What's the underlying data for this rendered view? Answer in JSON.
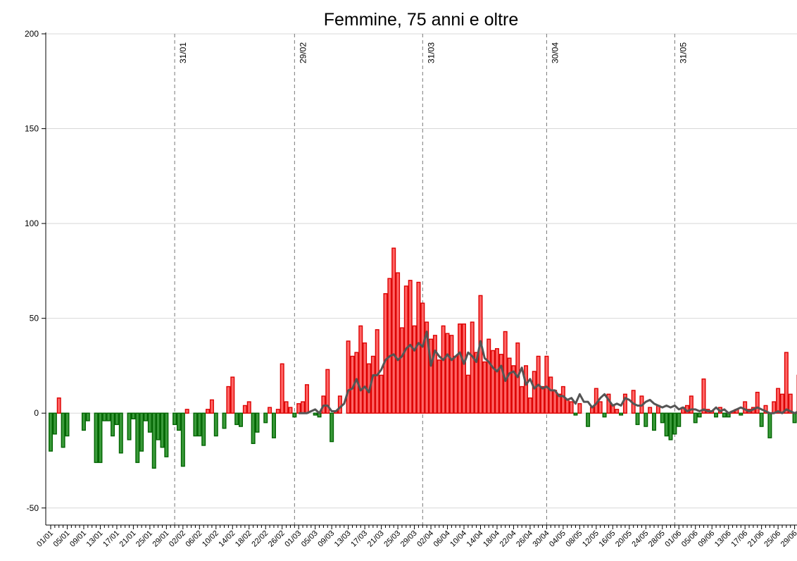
{
  "chart_data": {
    "type": "bar",
    "title": "Femmine, 75 anni e oltre",
    "categories": [
      "01/01",
      null,
      null,
      null,
      "05/01",
      null,
      null,
      null,
      "09/01",
      null,
      null,
      null,
      "13/01",
      null,
      null,
      null,
      "17/01",
      null,
      null,
      null,
      "21/01",
      null,
      null,
      null,
      "25/01",
      null,
      null,
      null,
      "29/01",
      null,
      null,
      null,
      "02/02",
      null,
      null,
      null,
      "06/02",
      null,
      null,
      null,
      "10/02",
      null,
      null,
      null,
      "14/02",
      null,
      null,
      null,
      "18/02",
      null,
      null,
      null,
      "22/02",
      null,
      null,
      null,
      "26/02",
      null,
      null,
      null,
      "01/03",
      null,
      null,
      null,
      "05/03",
      null,
      null,
      null,
      "09/03",
      null,
      null,
      null,
      "13/03",
      null,
      null,
      null,
      "17/03",
      null,
      null,
      null,
      "21/03",
      null,
      null,
      null,
      "25/03",
      null,
      null,
      null,
      "29/03",
      null,
      null,
      null,
      "02/04",
      null,
      null,
      null,
      "06/04",
      null,
      null,
      null,
      "10/04",
      null,
      null,
      null,
      "14/04",
      null,
      null,
      null,
      "18/04",
      null,
      null,
      null,
      "22/04",
      null,
      null,
      null,
      "26/04",
      null,
      null,
      null,
      "30/04",
      null,
      null,
      null,
      "04/05",
      null,
      null,
      null,
      "08/05",
      null,
      null,
      null,
      "12/05",
      null,
      null,
      null,
      "16/05",
      null,
      null,
      null,
      "20/05",
      null,
      null,
      null,
      "24/05",
      null,
      null,
      null,
      "28/05",
      null,
      null,
      null,
      "01/06",
      null,
      null,
      null,
      "05/06",
      null,
      null,
      null,
      "09/06",
      null,
      null,
      null,
      "13/06",
      null,
      null,
      null,
      "17/06",
      null,
      null,
      null,
      "21/06",
      null,
      null,
      null,
      "25/06",
      null,
      null,
      null,
      "29/06",
      null
    ],
    "series": [
      {
        "type": "bar",
        "positive_color": "#ff6666",
        "positive_stroke": "#dd0000",
        "negative_color": "#3a9a3a",
        "negative_stroke": "#006400",
        "values": [
          -20,
          -11,
          8,
          -18,
          -12,
          0,
          0,
          0,
          -9,
          -4,
          0,
          -26,
          -26,
          -4,
          -4,
          -12,
          -6,
          -21,
          0,
          -14,
          -3,
          -26,
          -20,
          -4,
          -10,
          -29,
          -14,
          -18,
          -23,
          0,
          -6,
          -9,
          -28,
          2,
          0,
          -12,
          -12,
          -17,
          2,
          7,
          -12,
          0,
          -8,
          14,
          19,
          -6,
          -7,
          4,
          6,
          -16,
          -10,
          0,
          -5,
          3,
          -13,
          2,
          26,
          6,
          3,
          -2,
          5,
          6,
          15,
          0,
          -1,
          -2,
          9,
          23,
          -15,
          1,
          9,
          0,
          38,
          30,
          32,
          46,
          37,
          26,
          30,
          44,
          20,
          63,
          71,
          87,
          74,
          45,
          67,
          70,
          46,
          69,
          58,
          48,
          39,
          41,
          28,
          46,
          42,
          41,
          30,
          47,
          47,
          20,
          48,
          32,
          62,
          27,
          39,
          33,
          34,
          31,
          43,
          29,
          25,
          37,
          14,
          25,
          8,
          22,
          30,
          14,
          30,
          19,
          12,
          10,
          14,
          7,
          6,
          -1,
          5,
          0,
          -7,
          3,
          13,
          6,
          -2,
          10,
          4,
          2,
          -1,
          10,
          0,
          12,
          -6,
          9,
          -7,
          3,
          -9,
          4,
          -5,
          -12,
          -14,
          -11,
          -7,
          3,
          4,
          9,
          -5,
          -2,
          18,
          2,
          1,
          -2,
          3,
          -2,
          -2,
          1,
          2,
          -1,
          6,
          2,
          3,
          11,
          -7,
          4,
          -13,
          6,
          13,
          10,
          32,
          10,
          -5,
          20
        ]
      },
      {
        "type": "line",
        "color": "#555555",
        "values": [
          null,
          null,
          null,
          null,
          null,
          null,
          null,
          null,
          null,
          null,
          null,
          null,
          null,
          null,
          null,
          null,
          null,
          null,
          null,
          null,
          null,
          null,
          null,
          null,
          null,
          null,
          null,
          null,
          null,
          null,
          null,
          null,
          null,
          null,
          null,
          null,
          null,
          null,
          null,
          null,
          null,
          null,
          null,
          null,
          null,
          null,
          null,
          null,
          null,
          null,
          null,
          null,
          null,
          null,
          null,
          null,
          null,
          null,
          null,
          null,
          0,
          0,
          0,
          1,
          2,
          0,
          4,
          4,
          1,
          1,
          3,
          5,
          12,
          13,
          18,
          12,
          14,
          11,
          20,
          20,
          23,
          28,
          30,
          31,
          28,
          30,
          34,
          36,
          33,
          37,
          35,
          43,
          25,
          33,
          30,
          28,
          31,
          28,
          30,
          32,
          26,
          32,
          30,
          27,
          38,
          29,
          27,
          24,
          22,
          25,
          17,
          21,
          22,
          19,
          24,
          15,
          18,
          13,
          15,
          13,
          14,
          12,
          12,
          9,
          9,
          7,
          8,
          5,
          10,
          6,
          6,
          3,
          5,
          8,
          10,
          7,
          4,
          5,
          4,
          8,
          7,
          5,
          4,
          4,
          6,
          7,
          5,
          4,
          3,
          4,
          3,
          4,
          2,
          3,
          1,
          2,
          2,
          1,
          2,
          1,
          1,
          3,
          1,
          2,
          0,
          1,
          2,
          3,
          2,
          1,
          2,
          3,
          2,
          1,
          0,
          0,
          1,
          0,
          2,
          1,
          0,
          1
        ]
      }
    ],
    "ylim": [
      -59,
      200
    ],
    "yticks": [
      200,
      150,
      100,
      50,
      0,
      -50
    ],
    "grid": true,
    "annotations": [
      {
        "text": "31/01",
        "index": 30
      },
      {
        "text": "29/02",
        "index": 59
      },
      {
        "text": "31/03",
        "index": 90
      },
      {
        "text": "30/04",
        "index": 120
      },
      {
        "text": "31/05",
        "index": 151
      }
    ]
  }
}
